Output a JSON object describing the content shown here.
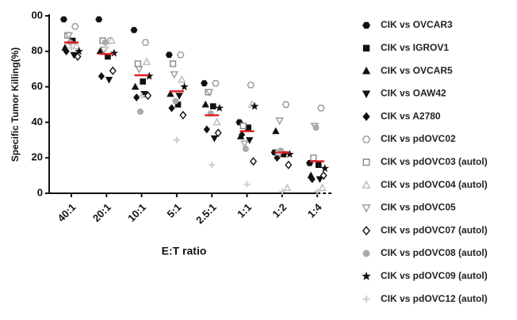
{
  "chart_data": {
    "type": "dot",
    "xlabel": "E:T ratio",
    "ylabel": "Specific Tumor Killing(%)",
    "categories": [
      "40:1",
      "20:1",
      "10:1",
      "5:1",
      "2.5:1",
      "1:1",
      "1:2",
      "1:4"
    ],
    "ylim": [
      0,
      100
    ],
    "yticks": [
      0,
      20,
      40,
      60,
      80,
      {
        "value": 100,
        "label": "00"
      }
    ],
    "medians": [
      85,
      78.5,
      66.5,
      57.5,
      44,
      35,
      23,
      18
    ],
    "median_color": "#e02020",
    "series": [
      {
        "name": "CIK vs OVCAR3",
        "color": "#111111",
        "marker": "hexagon",
        "filled": true,
        "values": [
          98,
          98,
          92,
          78,
          62,
          40,
          23,
          17
        ]
      },
      {
        "name": "CIK vs IGROV1",
        "color": "#111111",
        "marker": "square",
        "filled": true,
        "values": [
          86,
          77,
          63,
          50,
          49,
          37,
          22,
          16
        ]
      },
      {
        "name": "CIK vs OVCAR5",
        "color": "#111111",
        "marker": "triangle-up",
        "filled": true,
        "values": [
          82,
          80,
          60,
          56,
          50,
          32,
          35,
          10
        ]
      },
      {
        "name": "CIK vs OAW42",
        "color": "#111111",
        "marker": "triangle-down",
        "filled": true,
        "values": [
          78,
          64,
          56,
          55,
          31,
          30,
          22,
          8
        ]
      },
      {
        "name": "CIK vs A2780",
        "color": "#111111",
        "marker": "diamond",
        "filled": true,
        "values": [
          80,
          66,
          54,
          48,
          36,
          33,
          20,
          8
        ]
      },
      {
        "name": "CIK vs pdOVC02",
        "color": "#999999",
        "marker": "hexagon",
        "filled": false,
        "values": [
          94,
          86,
          85,
          78,
          62,
          61,
          50,
          48
        ]
      },
      {
        "name": "CIK vs pdOVC03 (autol)",
        "color": "#888888",
        "marker": "square",
        "filled": false,
        "values": [
          89,
          86,
          73,
          73,
          57,
          38,
          23,
          20
        ]
      },
      {
        "name": "CIK vs pdOVC04 (autol)",
        "color": "#bbbbbb",
        "marker": "triangle-up",
        "filled": false,
        "values": [
          83,
          86,
          74,
          64,
          40,
          50,
          3,
          3
        ]
      },
      {
        "name": "CIK vs pdOVC05",
        "color": "#999999",
        "marker": "triangle-down",
        "filled": false,
        "values": [
          89,
          81,
          70,
          67,
          57,
          28,
          41,
          38
        ]
      },
      {
        "name": "CIK vs pdOVC07 (autol)",
        "color": "#111111",
        "marker": "diamond",
        "filled": false,
        "values": [
          77,
          69,
          55,
          44,
          34,
          18,
          16,
          10
        ]
      },
      {
        "name": "CIK vs pdOVC08 (autol)",
        "color": "#aaaaaa",
        "marker": "circle",
        "filled": true,
        "values": [
          85,
          85,
          46,
          52,
          45,
          25,
          24,
          37
        ]
      },
      {
        "name": "CIK vs pdOVC09 (autol)",
        "color": "#111111",
        "marker": "star",
        "filled": true,
        "values": [
          80,
          79,
          66,
          60,
          48,
          49,
          22,
          14
        ]
      },
      {
        "name": "CIK vs pdOVC12  (autol)",
        "color": "#cccccc",
        "marker": "plus",
        "filled": true,
        "values": [
          82,
          82,
          55,
          30,
          16,
          5,
          1,
          1
        ]
      }
    ]
  }
}
